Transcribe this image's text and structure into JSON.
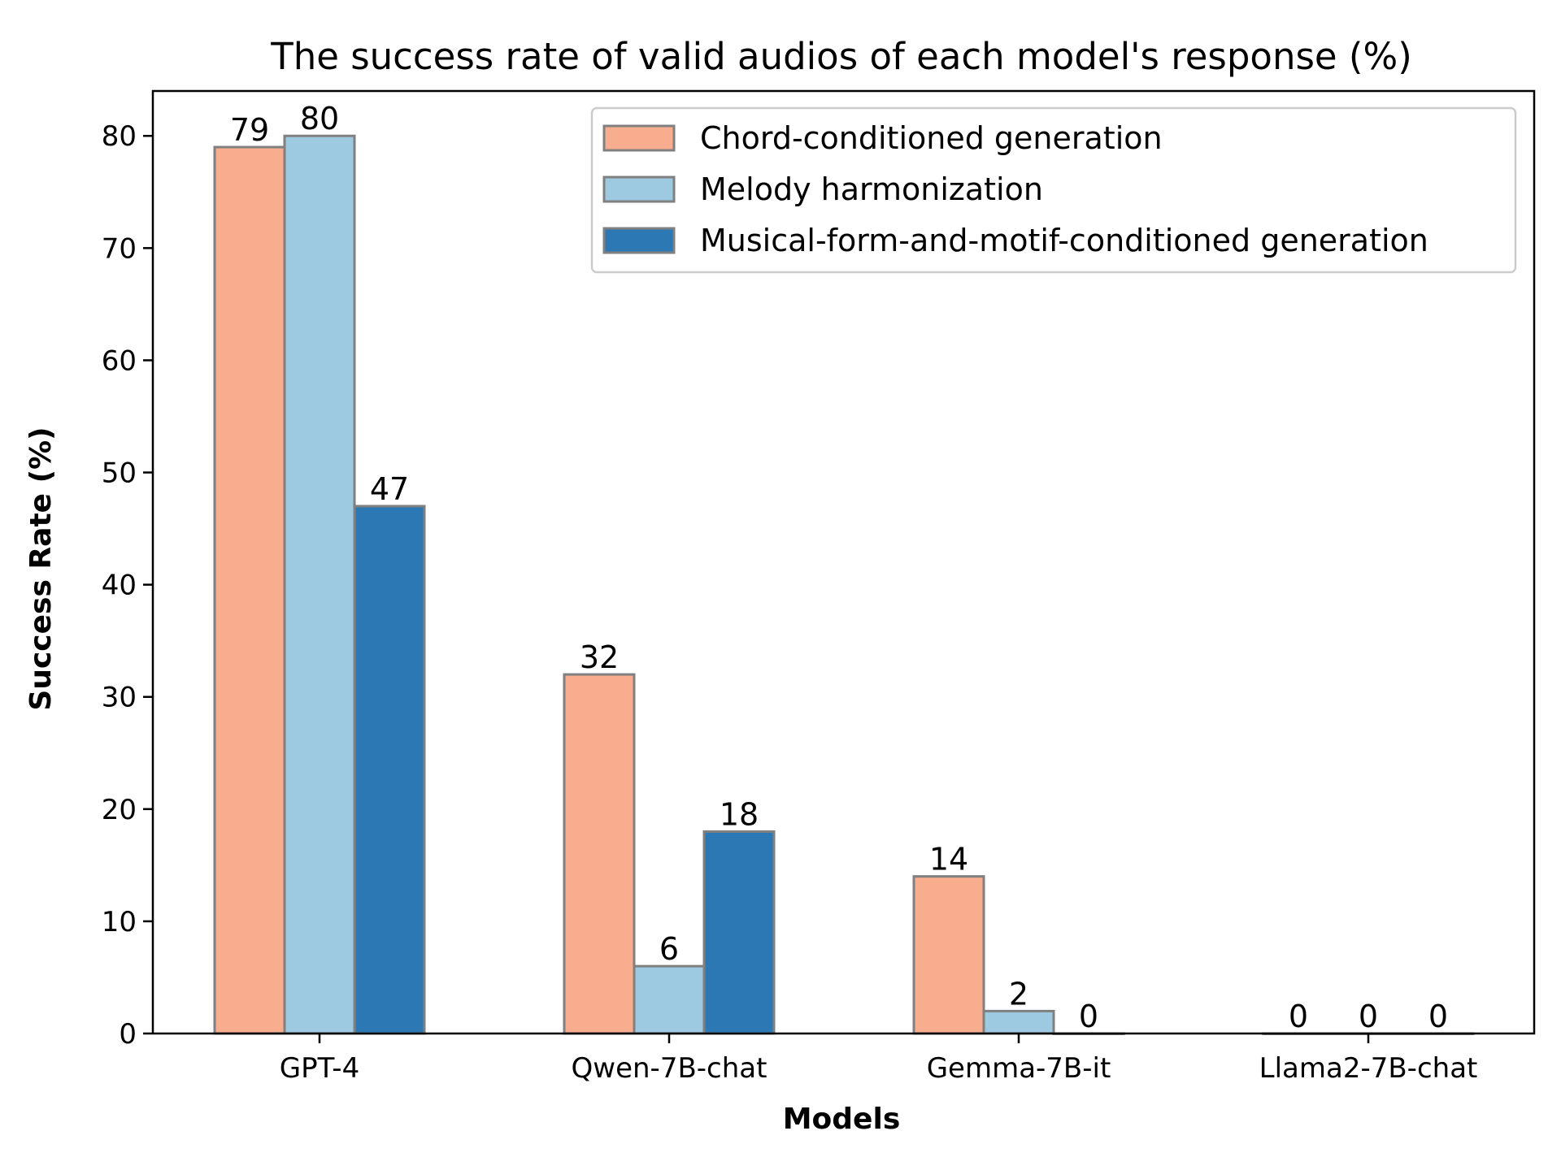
{
  "chart_data": {
    "type": "bar",
    "title": "The success rate of valid audios of each model's response  (%)",
    "xlabel": "Models",
    "ylabel": "Success Rate (%)",
    "categories": [
      "GPT-4",
      "Qwen-7B-chat",
      "Gemma-7B-it",
      "Llama2-7B-chat"
    ],
    "series": [
      {
        "name": "Chord-conditioned generation",
        "values": [
          79,
          32,
          14,
          0
        ],
        "color": "#f7ad8e"
      },
      {
        "name": "Melody harmonization",
        "values": [
          80,
          6,
          2,
          0
        ],
        "color": "#9ecae1"
      },
      {
        "name": "Musical-form-and-motif-conditioned generation",
        "values": [
          47,
          18,
          0,
          0
        ],
        "color": "#2b78b4"
      }
    ],
    "ylim": [
      0,
      84
    ],
    "yticks": [
      0,
      10,
      20,
      30,
      40,
      50,
      60,
      70,
      80
    ],
    "grid": false,
    "legend_position": "top-right",
    "bar_edge_color": "#808080"
  }
}
